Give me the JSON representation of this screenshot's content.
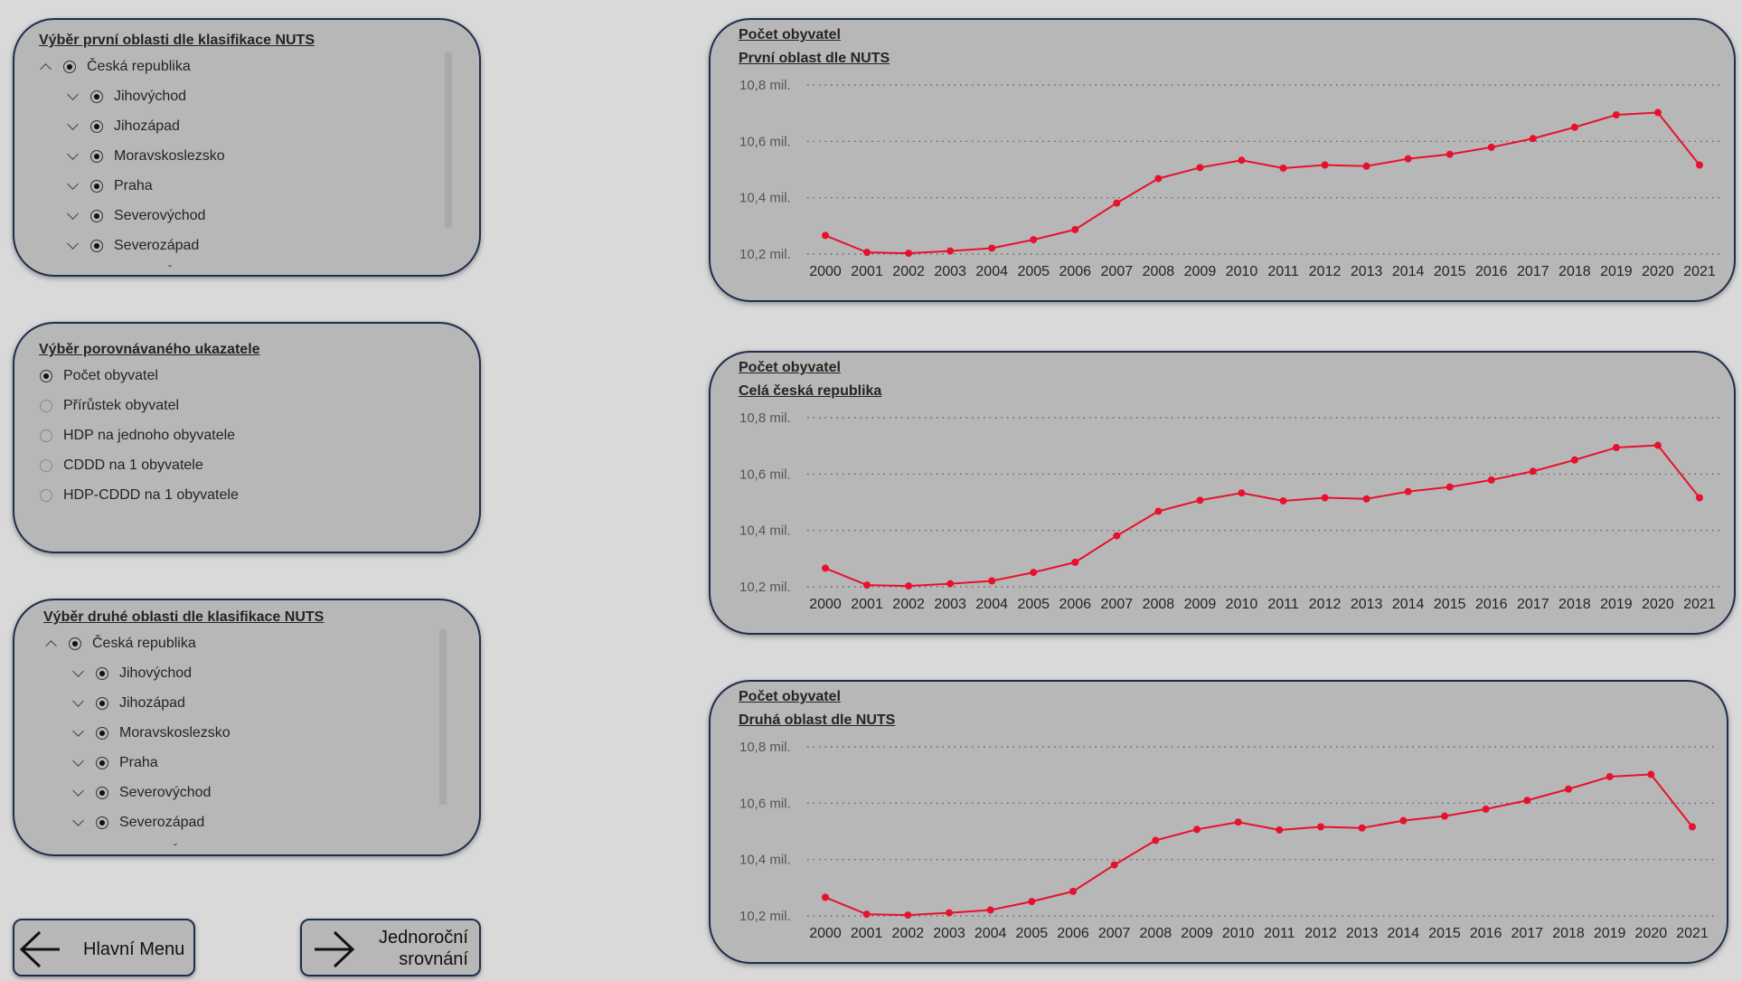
{
  "first_area": {
    "title": "Výběr první oblasti dle klasifikace NUTS",
    "root": "Česká republika",
    "items": [
      "Jihovýchod",
      "Jihozápad",
      "Moravskoslezsko",
      "Praha",
      "Severovýchod",
      "Severozápad"
    ]
  },
  "indicator": {
    "title": "Výběr porovnávaného ukazatele",
    "options": [
      {
        "label": "Počet obyvatel",
        "selected": true
      },
      {
        "label": "Přírůstek obyvatel",
        "selected": false
      },
      {
        "label": "HDP na jednoho obyvatele",
        "selected": false
      },
      {
        "label": "CDDD na 1 obyvatele",
        "selected": false
      },
      {
        "label": "HDP-CDDD na 1 obyvatele",
        "selected": false
      }
    ]
  },
  "second_area": {
    "title": "Výběr druhé oblasti dle klasifikace NUTS",
    "root": "Česká republika",
    "items": [
      "Jihovýchod",
      "Jihozápad",
      "Moravskoslezsko",
      "Praha",
      "Severovýchod",
      "Severozápad"
    ]
  },
  "buttons": {
    "back_label": "Hlavní Menu",
    "next_label_1": "Jednoroční",
    "next_label_2": "srovnání"
  },
  "chart_data": [
    {
      "type": "line",
      "title": "Počet obyvatel",
      "subtitle": "První oblast dle NUTS",
      "x": [
        "2000",
        "2001",
        "2002",
        "2003",
        "2004",
        "2005",
        "2006",
        "2007",
        "2008",
        "2009",
        "2010",
        "2011",
        "2012",
        "2013",
        "2014",
        "2015",
        "2016",
        "2017",
        "2018",
        "2019",
        "2020",
        "2021"
      ],
      "series": [
        {
          "values": [
            10.266,
            10.206,
            10.203,
            10.211,
            10.221,
            10.251,
            10.287,
            10.381,
            10.468,
            10.507,
            10.533,
            10.505,
            10.516,
            10.512,
            10.538,
            10.554,
            10.579,
            10.61,
            10.65,
            10.694,
            10.702,
            10.516
          ]
        }
      ],
      "yticks": [
        "10,2 mil.",
        "10,4 mil.",
        "10,6 mil.",
        "10,8 mil."
      ],
      "ylim": [
        10.2,
        10.8
      ],
      "grid": true,
      "line_color": "#e8112d"
    },
    {
      "type": "line",
      "title": "Počet obyvatel",
      "subtitle": "Celá česká republika",
      "x": [
        "2000",
        "2001",
        "2002",
        "2003",
        "2004",
        "2005",
        "2006",
        "2007",
        "2008",
        "2009",
        "2010",
        "2011",
        "2012",
        "2013",
        "2014",
        "2015",
        "2016",
        "2017",
        "2018",
        "2019",
        "2020",
        "2021"
      ],
      "series": [
        {
          "values": [
            10.266,
            10.206,
            10.203,
            10.211,
            10.221,
            10.251,
            10.287,
            10.381,
            10.468,
            10.507,
            10.533,
            10.505,
            10.516,
            10.512,
            10.538,
            10.554,
            10.579,
            10.61,
            10.65,
            10.694,
            10.702,
            10.516
          ]
        }
      ],
      "yticks": [
        "10,2 mil.",
        "10,4 mil.",
        "10,6 mil.",
        "10,8 mil."
      ],
      "ylim": [
        10.2,
        10.8
      ],
      "grid": true,
      "line_color": "#e8112d"
    },
    {
      "type": "line",
      "title": "Počet obyvatel",
      "subtitle": "Druhá oblast dle NUTS",
      "x": [
        "2000",
        "2001",
        "2002",
        "2003",
        "2004",
        "2005",
        "2006",
        "2007",
        "2008",
        "2009",
        "2010",
        "2011",
        "2012",
        "2013",
        "2014",
        "2015",
        "2016",
        "2017",
        "2018",
        "2019",
        "2020",
        "2021"
      ],
      "series": [
        {
          "values": [
            10.266,
            10.206,
            10.203,
            10.211,
            10.221,
            10.251,
            10.287,
            10.381,
            10.468,
            10.507,
            10.533,
            10.505,
            10.516,
            10.512,
            10.538,
            10.554,
            10.579,
            10.61,
            10.65,
            10.694,
            10.702,
            10.516
          ]
        }
      ],
      "yticks": [
        "10,2 mil.",
        "10,4 mil.",
        "10,6 mil.",
        "10,8 mil."
      ],
      "ylim": [
        10.2,
        10.8
      ],
      "grid": true,
      "line_color": "#e8112d"
    }
  ]
}
